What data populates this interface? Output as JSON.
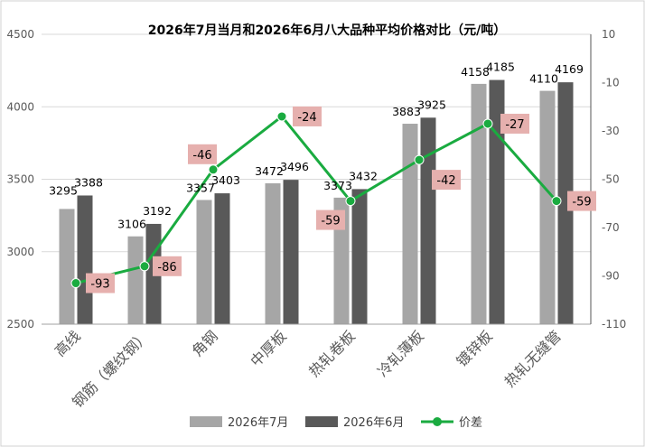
{
  "chart_data": {
    "type": "bar+line",
    "title": "2026年7月当月和2026年6月八大品种平均价格对比（元/吨）",
    "categories": [
      "高线",
      "钢筋（螺纹钢）",
      "角钢",
      "中厚板",
      "热轧卷板",
      "冷轧薄板",
      "镀锌板",
      "热轧无缝管"
    ],
    "series": [
      {
        "name": "2026年7月",
        "type": "bar",
        "axis": "left",
        "color": "#a6a6a6",
        "values": [
          3295,
          3106,
          3357,
          3472,
          3373,
          3883,
          4158,
          4110
        ]
      },
      {
        "name": "2026年6月",
        "type": "bar",
        "axis": "left",
        "color": "#595959",
        "values": [
          3388,
          3192,
          3403,
          3496,
          3432,
          3925,
          4185,
          4169
        ]
      },
      {
        "name": "价差",
        "type": "line",
        "axis": "right",
        "color": "#1aab40",
        "values": [
          -93,
          -86,
          -46,
          -24,
          -59,
          -42,
          -27,
          -59
        ]
      }
    ],
    "left_axis": {
      "min": 2500,
      "max": 4500,
      "ticks": [
        2500,
        3000,
        3500,
        4000,
        4500
      ]
    },
    "right_axis": {
      "min": -110,
      "max": 10,
      "ticks": [
        10,
        -10,
        -30,
        -50,
        -70,
        -90,
        -110
      ]
    },
    "grid": true,
    "legend_position": "bottom"
  }
}
